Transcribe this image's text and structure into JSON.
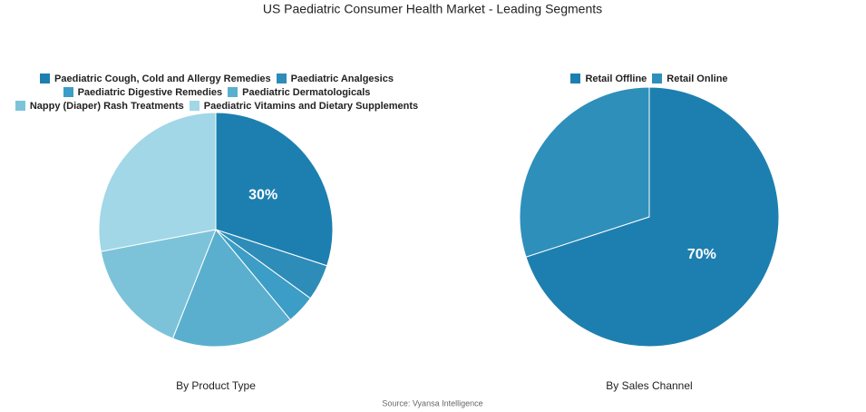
{
  "title": "US Paediatric Consumer Health Market - Leading Segments",
  "source": "Source: Vyansa Intelligence",
  "chart_data": [
    {
      "type": "pie",
      "subtitle": "By Product Type",
      "categories": [
        "Paediatric Cough, Cold and Allergy Remedies",
        "Paediatric Analgesics",
        "Paediatric Digestive Remedies",
        "Paediatric Dermatologicals",
        "Nappy (Diaper) Rash Treatments",
        "Paediatric Vitamins and Dietary Supplements"
      ],
      "values": [
        30,
        5,
        4,
        17,
        16,
        28
      ],
      "value_labels": [
        "30%",
        null,
        null,
        null,
        null,
        null
      ],
      "colors": [
        "#1d7fb0",
        "#2e8cb8",
        "#3c9dc6",
        "#5aafce",
        "#7cc3da",
        "#a1d7e6"
      ]
    },
    {
      "type": "pie",
      "subtitle": "By Sales Channel",
      "categories": [
        "Retail Offline",
        "Retail Online"
      ],
      "values": [
        70,
        30
      ],
      "value_labels": [
        "70%",
        null
      ],
      "colors": [
        "#1d7fb0",
        "#2e8fbb"
      ]
    }
  ]
}
